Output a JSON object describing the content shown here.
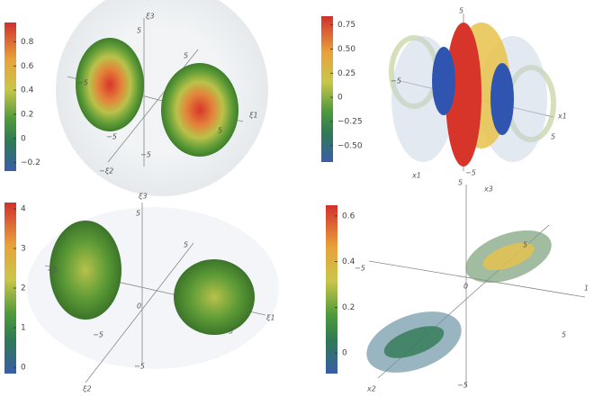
{
  "panels": [
    {
      "colorbar": {
        "lim": [
          -0.27,
          0.96
        ],
        "ticks": [
          0.8,
          0.6,
          0.4,
          0.2,
          0,
          {
            "value": -0.2,
            "label": "−0.2"
          }
        ]
      },
      "axis_texts": [
        "ξ3",
        "5",
        "5",
        "−5",
        "ξ1",
        "5",
        "−5",
        "−5",
        "−ξ2"
      ]
    },
    {
      "colorbar": {
        "lim": [
          -0.67,
          0.84
        ],
        "ticks": [
          0.75,
          {
            "value": 0.5,
            "label": "0.50"
          },
          0.25,
          0,
          {
            "value": -0.25,
            "label": "−0.25"
          },
          {
            "value": -0.5,
            "label": "−0.50"
          }
        ]
      },
      "axis_texts": [
        "5",
        "−5",
        "x1",
        "x1",
        "5",
        "−5"
      ]
    },
    {
      "colorbar": {
        "lim": [
          -0.16,
          4.16
        ],
        "ticks": [
          4,
          3,
          2,
          1,
          0
        ]
      },
      "axis_texts": [
        "ξ3",
        "5",
        "5",
        "−5",
        "ξ1",
        "5",
        "0",
        "−5",
        "−5",
        "ξ2"
      ]
    },
    {
      "colorbar": {
        "lim": [
          -0.09,
          0.647
        ],
        "ticks": [
          0.6,
          0.4,
          0.2,
          0
        ]
      },
      "axis_texts": [
        "x3",
        "5",
        "−5",
        "0",
        "5",
        "5",
        "−5",
        "x2",
        "1"
      ]
    }
  ]
}
